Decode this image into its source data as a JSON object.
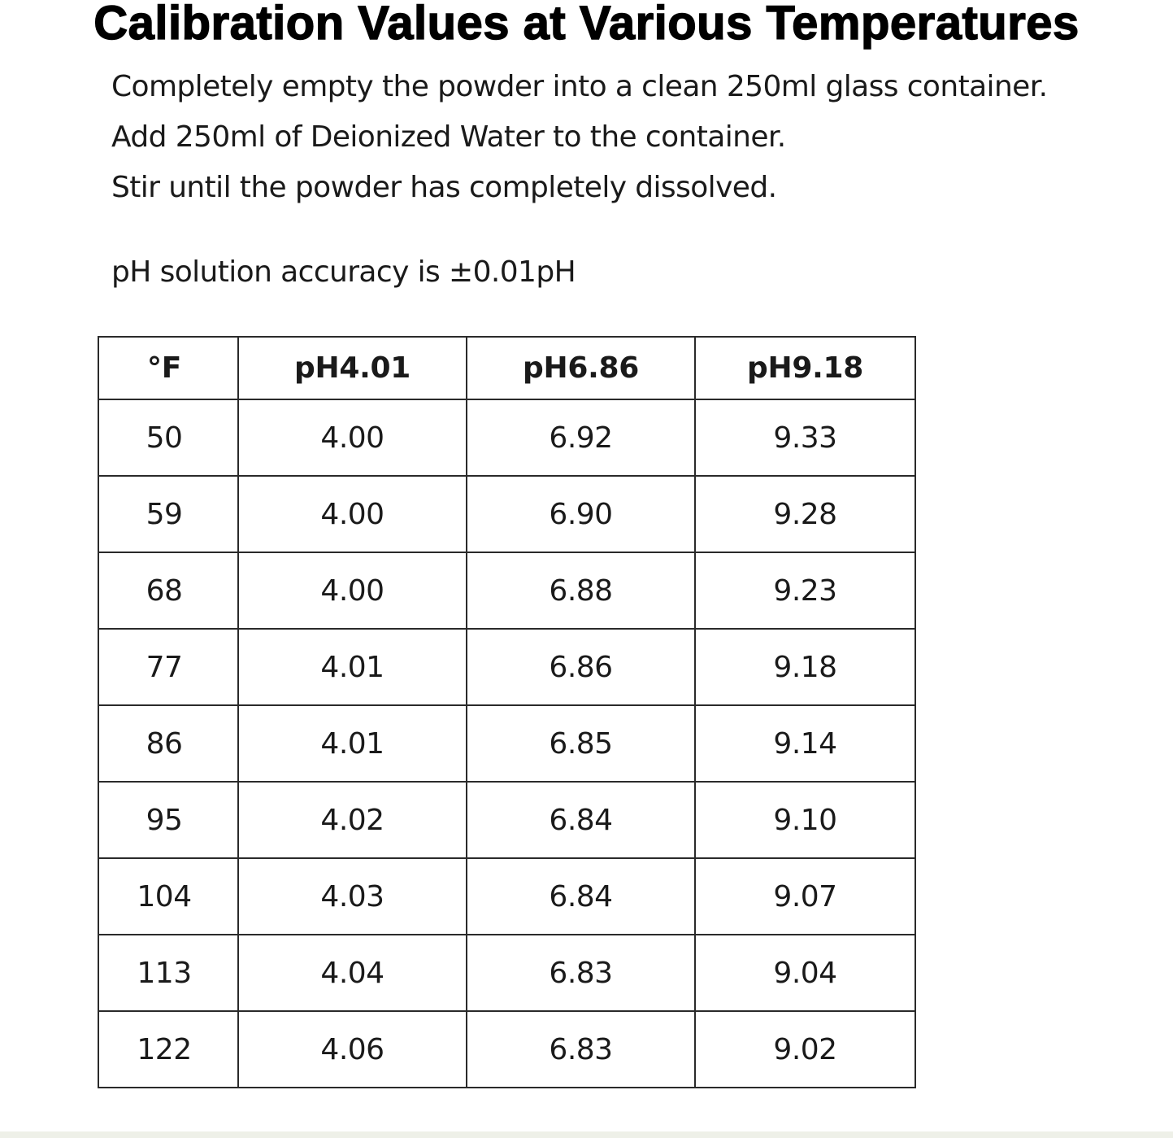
{
  "title": "Calibration Values at Various Temperatures",
  "instructions": [
    "Completely empty the powder into a clean 250ml glass container.",
    "Add 250ml of Deionized Water to the container.",
    "Stir until the powder has completely dissolved."
  ],
  "accuracy_note": "pH solution accuracy is ±0.01pH",
  "table": {
    "headers": [
      "°F",
      "pH4.01",
      "pH6.86",
      "pH9.18"
    ],
    "rows": [
      [
        "50",
        "4.00",
        "6.92",
        "9.33"
      ],
      [
        "59",
        "4.00",
        "6.90",
        "9.28"
      ],
      [
        "68",
        "4.00",
        "6.88",
        "9.23"
      ],
      [
        "77",
        "4.01",
        "6.86",
        "9.18"
      ],
      [
        "86",
        "4.01",
        "6.85",
        "9.14"
      ],
      [
        "95",
        "4.02",
        "6.84",
        "9.10"
      ],
      [
        "104",
        "4.03",
        "6.84",
        "9.07"
      ],
      [
        "113",
        "4.04",
        "6.83",
        "9.04"
      ],
      [
        "122",
        "4.06",
        "6.83",
        "9.02"
      ]
    ]
  }
}
